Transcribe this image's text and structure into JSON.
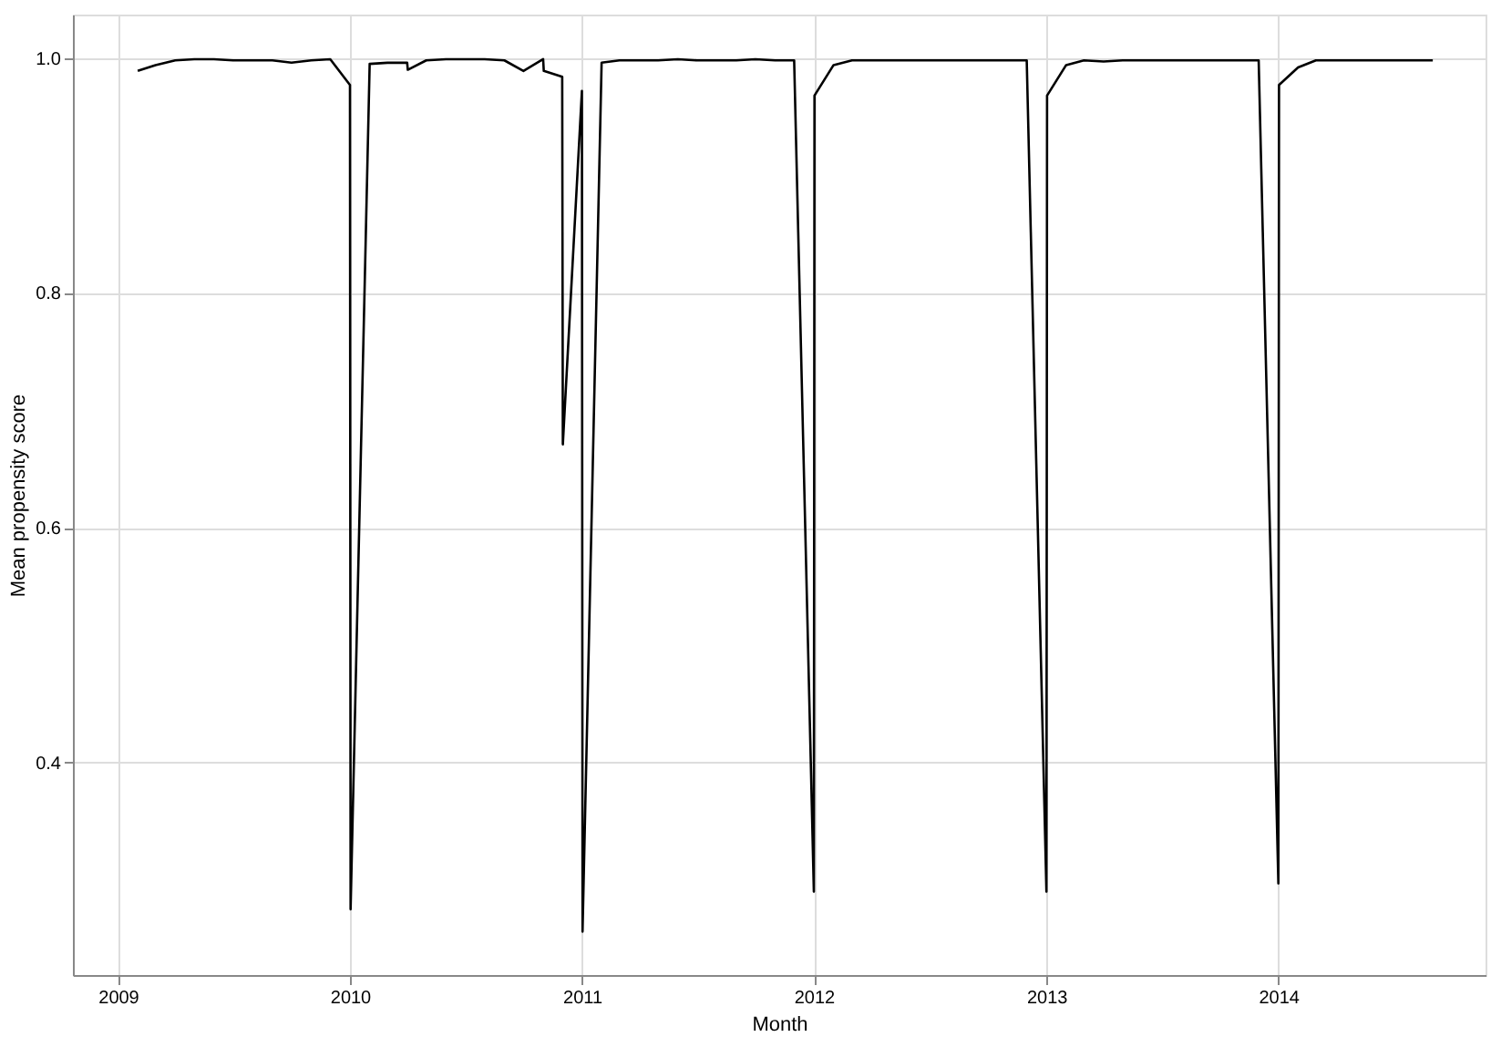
{
  "chart_data": {
    "type": "line",
    "xlabel": "Month",
    "ylabel": "Mean propensity score",
    "x": [
      "2009-02-01",
      "2009-03-01",
      "2009-04-01",
      "2009-05-01",
      "2009-06-01",
      "2009-07-01",
      "2009-08-01",
      "2009-09-01",
      "2009-10-01",
      "2009-11-01",
      "2009-12-01",
      "2010-01-01",
      "2010-01-02",
      "2010-02-01",
      "2010-03-01",
      "2010-04-01",
      "2010-04-02",
      "2010-05-01",
      "2010-06-01",
      "2010-07-01",
      "2010-08-01",
      "2010-09-01",
      "2010-10-01",
      "2010-11-01",
      "2010-11-02",
      "2010-12-01",
      "2010-12-02",
      "2011-01-01",
      "2011-01-02",
      "2011-02-01",
      "2011-03-01",
      "2011-04-01",
      "2011-05-01",
      "2011-06-01",
      "2011-07-01",
      "2011-08-01",
      "2011-09-01",
      "2011-10-01",
      "2011-11-01",
      "2011-12-01",
      "2012-01-01",
      "2012-01-02",
      "2012-02-01",
      "2012-03-01",
      "2012-04-01",
      "2012-05-01",
      "2012-06-01",
      "2012-07-01",
      "2012-08-01",
      "2012-09-01",
      "2012-10-01",
      "2012-11-01",
      "2012-12-01",
      "2013-01-01",
      "2013-01-02",
      "2013-02-01",
      "2013-03-01",
      "2013-04-01",
      "2013-05-01",
      "2013-06-01",
      "2013-07-01",
      "2013-08-01",
      "2013-09-01",
      "2013-10-01",
      "2013-11-01",
      "2013-12-01",
      "2014-01-01",
      "2014-01-02",
      "2014-02-01",
      "2014-03-01",
      "2014-04-01",
      "2014-05-01",
      "2014-06-01",
      "2014-07-01",
      "2014-08-01",
      "2014-09-01"
    ],
    "series": [
      {
        "color": "#000000",
        "values": [
          0.989,
          0.994,
          0.998,
          0.999,
          0.999,
          0.998,
          0.998,
          0.998,
          0.996,
          0.998,
          0.999,
          0.977,
          0.275,
          0.995,
          0.996,
          0.996,
          0.99,
          0.998,
          0.999,
          0.999,
          0.999,
          0.998,
          0.989,
          0.999,
          0.989,
          0.984,
          0.671,
          0.972,
          0.256,
          0.996,
          0.998,
          0.998,
          0.998,
          0.999,
          0.998,
          0.998,
          0.998,
          0.999,
          0.998,
          0.998,
          0.29,
          0.968,
          0.994,
          0.998,
          0.998,
          0.998,
          0.998,
          0.998,
          0.998,
          0.998,
          0.998,
          0.998,
          0.998,
          0.29,
          0.968,
          0.994,
          0.998,
          0.997,
          0.998,
          0.998,
          0.998,
          0.998,
          0.998,
          0.998,
          0.998,
          0.998,
          0.297,
          0.977,
          0.992,
          0.998,
          0.998,
          0.998,
          0.998,
          0.998,
          0.998,
          0.998
        ]
      }
    ],
    "xlim": [
      "2008-10-22",
      "2014-11-23"
    ],
    "xticks": [
      "2009",
      "2010",
      "2011",
      "2012",
      "2013",
      "2014"
    ],
    "ylim": [
      0.219,
      1.037
    ],
    "yticks": [
      0.4,
      0.6,
      0.8,
      {
        "value": 1.0,
        "label": "1.0"
      }
    ],
    "grid": true,
    "marker": "none",
    "line_style": "solid"
  }
}
